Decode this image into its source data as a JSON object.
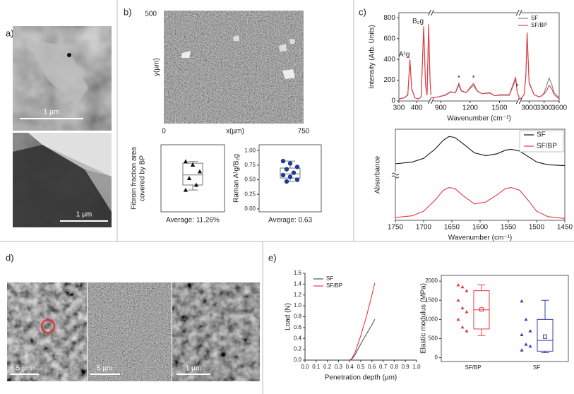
{
  "panel_labels": [
    "a)",
    "b)",
    "c)",
    "d)",
    "e)"
  ],
  "images": {
    "a_scale": [
      "1 µm",
      "1 µm"
    ],
    "d_scale": [
      "5 µm",
      "5 µm",
      "1 µm"
    ]
  },
  "map": {
    "ylabel": "y(µm)",
    "xlabel": "x(µm)",
    "xticks": [
      0,
      750
    ],
    "yticks": [
      500
    ]
  },
  "chart_data": [
    {
      "type": "box",
      "ylabel": [
        "Fibroin fraction  area",
        "covered by BP"
      ],
      "xlabel": "Average: 11.26%",
      "ylim": [
        0,
        20
      ],
      "marker": "triangle",
      "groups": [
        {
          "color": "#111111",
          "points": [
            15,
            14,
            12,
            10,
            8,
            6.5
          ],
          "box": {
            "whisker_low": 6.5,
            "q1": 8,
            "median": 11,
            "q3": 14.5,
            "whisker_high": 15
          }
        }
      ]
    },
    {
      "type": "box",
      "ylabel": [
        "Raman A¹g/B₂g"
      ],
      "xlabel": "Average: 0.63",
      "ylim": [
        -0.05,
        1.1
      ],
      "marker": "circle",
      "yticks": [
        {
          "value": 0,
          "label": "0.00"
        },
        {
          "value": 0.25,
          "label": "0.25"
        },
        {
          "value": 0.5,
          "label": "0.50"
        },
        {
          "value": 0.75,
          "label": "0.75"
        },
        {
          "value": 1,
          "label": "1.00"
        }
      ],
      "groups": [
        {
          "color": "#1f3a93",
          "points": [
            0.82,
            0.78,
            0.72,
            0.68,
            0.62,
            0.58,
            0.55,
            0.5,
            0.47
          ],
          "box": {
            "whisker_low": 0.47,
            "q1": 0.53,
            "median": 0.6,
            "q3": 0.7,
            "whisker_high": 0.82
          }
        }
      ]
    },
    {
      "type": "line",
      "ylabel": [
        "Intensity (Arb. Units)"
      ],
      "xlabel": "Wavenumber (cm⁻¹)",
      "xlim": [
        300,
        3600
      ],
      "x_breaks": [
        [
          480,
          800
        ],
        [
          1700,
          2800
        ]
      ],
      "xticks": [
        300,
        400,
        900,
        1200,
        1500,
        3000,
        3300,
        3600
      ],
      "ylim": [
        0,
        850
      ],
      "yticks": [
        0,
        200,
        400,
        600,
        800
      ],
      "legend": "upper right",
      "x": [
        300,
        330,
        350,
        362,
        372,
        390,
        410,
        425,
        439,
        450,
        458,
        467,
        475,
        480,
        800,
        880,
        950,
        1000,
        1050,
        1085,
        1110,
        1160,
        1200,
        1235,
        1270,
        1320,
        1400,
        1450,
        1500,
        1550,
        1600,
        1650,
        1665,
        1680,
        1700,
        2800,
        2850,
        2900,
        2935,
        2960,
        3000,
        3100,
        3200,
        3250,
        3300,
        3350,
        3400,
        3450,
        3500,
        3600
      ],
      "series": [
        {
          "name": "SF",
          "color": "#808080",
          "values": [
            20,
            30,
            55,
            380,
            110,
            30,
            20,
            40,
            700,
            140,
            55,
            720,
            190,
            55,
            30,
            40,
            55,
            85,
            80,
            150,
            95,
            80,
            120,
            150,
            95,
            70,
            75,
            50,
            55,
            55,
            55,
            170,
            210,
            85,
            30,
            20,
            30,
            60,
            230,
            640,
            170,
            60,
            40,
            50,
            80,
            150,
            220,
            160,
            80,
            30
          ]
        },
        {
          "name": "SF/BP",
          "color": "#e8393f",
          "values": [
            20,
            30,
            60,
            400,
            120,
            30,
            20,
            40,
            720,
            150,
            60,
            740,
            200,
            60,
            30,
            40,
            60,
            90,
            80,
            170,
            100,
            80,
            130,
            170,
            100,
            70,
            80,
            50,
            60,
            60,
            60,
            190,
            230,
            90,
            30,
            20,
            30,
            60,
            250,
            660,
            180,
            60,
            40,
            50,
            70,
            100,
            150,
            120,
            60,
            20
          ]
        }
      ],
      "annotations": [
        {
          "text": "A¹g",
          "x": 362
        },
        {
          "text": "B₂g",
          "x": 439
        },
        {
          "text": "*",
          "x": 1085
        },
        {
          "text": "*",
          "x": 1235
        },
        {
          "text": "*",
          "x": 1680
        }
      ]
    },
    {
      "type": "line",
      "ylabel": [
        "Absorbance"
      ],
      "xlabel": "Wavenumber (cm⁻¹)",
      "xlim": [
        1750,
        1450
      ],
      "xticks": [
        1750,
        1700,
        1650,
        1600,
        1550,
        1500,
        1450
      ],
      "ylim": [
        0,
        1
      ],
      "legend": "upper right",
      "x": [
        1750,
        1720,
        1700,
        1680,
        1665,
        1655,
        1645,
        1630,
        1610,
        1590,
        1570,
        1555,
        1545,
        1530,
        1515,
        1500,
        1480,
        1450
      ],
      "series": [
        {
          "name": "SF",
          "color": "#111111",
          "values": [
            0.62,
            0.64,
            0.68,
            0.78,
            0.88,
            0.92,
            0.91,
            0.84,
            0.74,
            0.71,
            0.73,
            0.77,
            0.78,
            0.76,
            0.7,
            0.64,
            0.61,
            0.6
          ]
        },
        {
          "name": "SF/BP",
          "color": "#e8393f",
          "values": [
            0.03,
            0.05,
            0.1,
            0.22,
            0.33,
            0.36,
            0.35,
            0.27,
            0.18,
            0.2,
            0.28,
            0.35,
            0.36,
            0.33,
            0.22,
            0.1,
            0.04,
            0.02
          ]
        }
      ]
    },
    {
      "type": "line",
      "ylabel": [
        "Load (N)"
      ],
      "xlabel": "Penetration depth (µm)",
      "xlim": [
        0,
        1
      ],
      "ylim": [
        0,
        1.6
      ],
      "legend": "upper left",
      "xticks": [
        {
          "value": 0,
          "label": "0.0"
        },
        {
          "value": 0.1,
          "label": "0.1"
        },
        {
          "value": 0.2,
          "label": "0.2"
        },
        {
          "value": 0.3,
          "label": "0.3"
        },
        {
          "value": 0.4,
          "label": "0.4"
        },
        {
          "value": 0.5,
          "label": "0.5"
        },
        {
          "value": 0.6,
          "label": "0.6"
        },
        {
          "value": 0.7,
          "label": "0.7"
        },
        {
          "value": 0.8,
          "label": "0.8"
        },
        {
          "value": 0.9,
          "label": "0.9"
        },
        {
          "value": 1,
          "label": "1.0"
        }
      ],
      "yticks": [
        {
          "value": 0,
          "label": "0.0"
        },
        {
          "value": 0.2,
          "label": "0.2"
        },
        {
          "value": 0.4,
          "label": "0.4"
        },
        {
          "value": 0.6,
          "label": "0.6"
        },
        {
          "value": 0.8,
          "label": "0.8"
        },
        {
          "value": 1,
          "label": "1.0"
        },
        {
          "value": 1.2,
          "label": "1.2"
        },
        {
          "value": 1.4,
          "label": "1.4"
        },
        {
          "value": 1.6,
          "label": "1.6"
        }
      ],
      "series": [
        {
          "name": "SF",
          "color": "#555555",
          "x": [
            0.4,
            0.42,
            0.45,
            0.5,
            0.55,
            0.6,
            0.625
          ],
          "values": [
            0,
            0.02,
            0.1,
            0.3,
            0.48,
            0.65,
            0.75
          ]
        },
        {
          "name": "SF/BP",
          "color": "#e8393f",
          "x": [
            0.4,
            0.42,
            0.45,
            0.5,
            0.55,
            0.6,
            0.625
          ],
          "values": [
            0,
            0.03,
            0.15,
            0.45,
            0.8,
            1.2,
            1.42
          ]
        }
      ]
    },
    {
      "type": "box",
      "ylabel": [
        "Elastic modulus (MPa)"
      ],
      "categories": [
        "SF/BP",
        "SF"
      ],
      "ylim": [
        -100,
        2150
      ],
      "yticks": [
        0,
        500,
        1000,
        1500,
        2000
      ],
      "marker": "triangle",
      "groups": [
        {
          "color": "#e8393f",
          "points": [
            1900,
            1850,
            1750,
            1500,
            1300,
            1200,
            1000,
            800,
            700
          ],
          "box": {
            "whisker_low": 580,
            "q1": 750,
            "median": 1250,
            "q3": 1750,
            "whisker_high": 1900,
            "mean": 1260
          }
        },
        {
          "color": "#3b3bb0",
          "points": [
            1480,
            1000,
            700,
            600,
            350,
            300,
            200
          ],
          "box": {
            "whisker_low": 130,
            "q1": 170,
            "median": 450,
            "q3": 1000,
            "whisker_high": 1500,
            "mean": 550
          }
        }
      ]
    }
  ]
}
